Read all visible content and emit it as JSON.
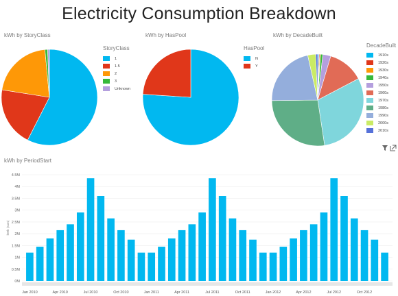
{
  "title": "Electricity Consumption Breakdown",
  "colors": {
    "main_blue": "#01b8f0",
    "axis_grey": "#d9d9d9",
    "text_grey": "#7a7a7a"
  },
  "chart_data": [
    {
      "type": "pie",
      "title": "kWh by StoryClass",
      "legend_title": "StoryClass",
      "legend_position": "right",
      "slices": [
        {
          "label": "1",
          "value": 57.5,
          "color": "#01b8f0"
        },
        {
          "label": "1.5",
          "value": 20.0,
          "color": "#e0371a"
        },
        {
          "label": "2",
          "value": 21.0,
          "color": "#fe9807"
        },
        {
          "label": "3",
          "value": 0.9,
          "color": "#37b93b"
        },
        {
          "label": "Unknown",
          "value": 0.6,
          "color": "#b49fde"
        }
      ]
    },
    {
      "type": "pie",
      "title": "kWh by HasPool",
      "legend_title": "HasPool",
      "legend_position": "right",
      "slices": [
        {
          "label": "N",
          "value": 76.0,
          "color": "#01b8f0"
        },
        {
          "label": "Y",
          "value": 24.0,
          "color": "#e0371a"
        }
      ]
    },
    {
      "type": "pie",
      "title": "kWh by DecadeBuilt",
      "legend_title": "DecadeBuilt",
      "legend_position": "right",
      "slices": [
        {
          "label": "1910s",
          "value": 0.4,
          "color": "#01b8f0"
        },
        {
          "label": "1920s",
          "value": 0.3,
          "color": "#e0371a"
        },
        {
          "label": "1930s",
          "value": 0.3,
          "color": "#fe9807"
        },
        {
          "label": "1940s",
          "value": 0.8,
          "color": "#37b93b"
        },
        {
          "label": "1950s",
          "value": 2.8,
          "color": "#b49fde"
        },
        {
          "label": "1960s",
          "value": 12.7,
          "color": "#e16b56"
        },
        {
          "label": "1970s",
          "value": 30.3,
          "color": "#7fd6dc"
        },
        {
          "label": "1980s",
          "value": 27.2,
          "color": "#5fae87"
        },
        {
          "label": "1990s",
          "value": 21.7,
          "color": "#94aedc"
        },
        {
          "label": "2000s",
          "value": 2.8,
          "color": "#caeb65"
        },
        {
          "label": "2010s",
          "value": 0.7,
          "color": "#5671d9"
        }
      ]
    },
    {
      "type": "bar",
      "title": "kWh by PeriodStart",
      "ylabel": "kWh (sum)",
      "ylim": [
        0,
        4.5
      ],
      "y_ticks": [
        {
          "value": 0,
          "label": "0M"
        },
        {
          "value": 0.5,
          "label": "0.5M"
        },
        {
          "value": 1,
          "label": "1M"
        },
        {
          "value": 1.5,
          "label": "1.5M"
        },
        {
          "value": 2,
          "label": "2M"
        },
        {
          "value": 2.5,
          "label": "2.5M"
        },
        {
          "value": 3,
          "label": "3M"
        },
        {
          "value": 3.5,
          "label": "3.5M"
        },
        {
          "value": 4,
          "label": "4M"
        },
        {
          "value": 4.5,
          "label": "4.5M"
        }
      ],
      "x_tick_labels": [
        "Jan 2010",
        "Apr 2010",
        "Jul 2010",
        "Oct 2010",
        "Jan 2011",
        "Apr 2011",
        "Jul 2011",
        "Oct 2011",
        "Jan 2012",
        "Apr 2012",
        "Jul 2012",
        "Oct 2012"
      ],
      "x_tick_every": 3,
      "grid": true,
      "values": [
        1.2,
        1.45,
        1.8,
        2.15,
        2.4,
        2.9,
        4.35,
        3.6,
        2.65,
        2.15,
        1.75,
        1.2,
        1.2,
        1.45,
        1.8,
        2.15,
        2.4,
        2.9,
        4.35,
        3.6,
        2.65,
        2.15,
        1.75,
        1.2,
        1.2,
        1.45,
        1.8,
        2.15,
        2.4,
        2.9,
        4.35,
        3.6,
        2.65,
        2.15,
        1.75,
        1.2
      ]
    }
  ],
  "toolbar": {
    "filter_icon": "filter-icon",
    "expand_icon": "focus-mode-icon"
  }
}
